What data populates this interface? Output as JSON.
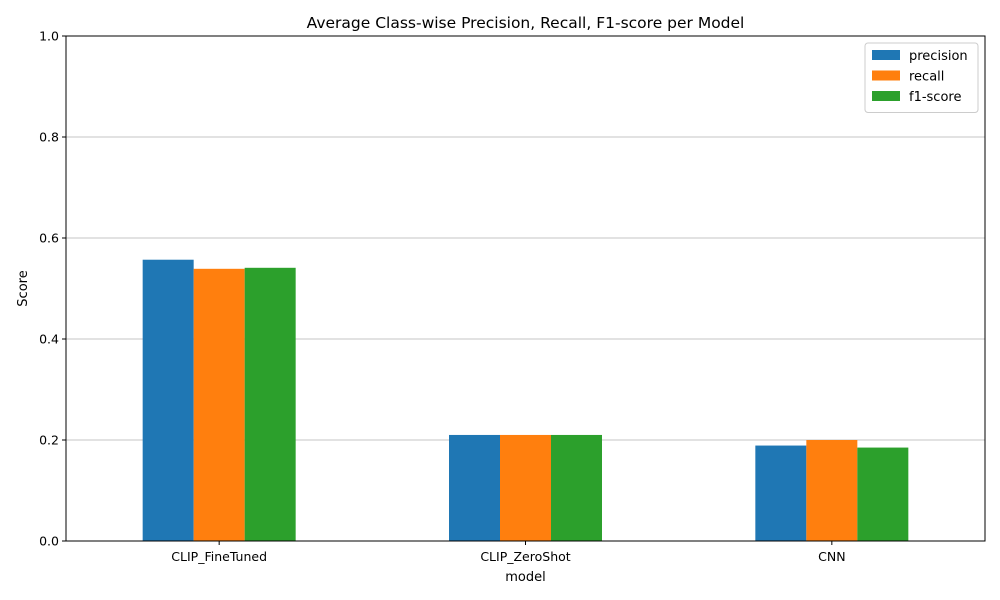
{
  "chart_data": {
    "type": "bar",
    "title": "Average Class-wise Precision, Recall, F1-score per Model",
    "xlabel": "model",
    "ylabel": "Score",
    "ylim": [
      0,
      1.0
    ],
    "yticks": [
      "0.0",
      "0.2",
      "0.4",
      "0.6",
      "0.8",
      "1.0"
    ],
    "grid": "horizontal",
    "legend_position": "top-right",
    "categories": [
      "CLIP_FineTuned",
      "CLIP_ZeroShot",
      "CNN"
    ],
    "series": [
      {
        "name": "precision",
        "color": "#1f77b4",
        "values": [
          0.557,
          0.21,
          0.189
        ]
      },
      {
        "name": "recall",
        "color": "#ff7f0e",
        "values": [
          0.539,
          0.21,
          0.2
        ]
      },
      {
        "name": "f1-score",
        "color": "#2ca02c",
        "values": [
          0.541,
          0.21,
          0.185
        ]
      }
    ]
  }
}
